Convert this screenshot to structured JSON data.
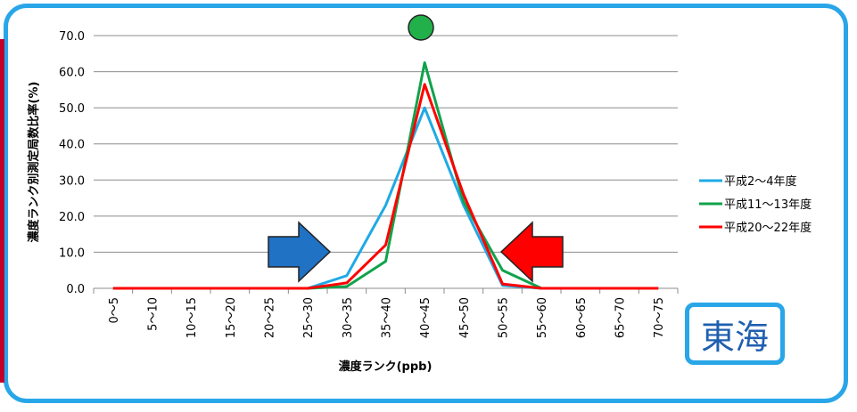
{
  "region_label": "東海",
  "colors": {
    "frame": "#29a6e8",
    "marker_circle": "#22b04b",
    "arrow_left": "#1f72c4",
    "arrow_right": "#ff0000"
  },
  "chart_data": {
    "type": "line",
    "title": "",
    "xlabel": "濃度ランク(ppb)",
    "ylabel": "濃度ランク別測定局数比率(%)",
    "ylim": [
      0,
      70
    ],
    "yticks": [
      "0.0",
      "10.0",
      "20.0",
      "30.0",
      "40.0",
      "50.0",
      "60.0",
      "70.0"
    ],
    "grid": true,
    "legend_position": "right",
    "categories": [
      "0〜5",
      "5〜10",
      "10〜15",
      "15〜20",
      "20〜25",
      "25〜30",
      "30〜35",
      "35〜40",
      "40〜45",
      "45〜50",
      "50〜55",
      "55〜60",
      "60〜65",
      "65〜70",
      "70〜75"
    ],
    "series": [
      {
        "name": "平成2〜4年度",
        "color": "#1fa9e5",
        "values": [
          0,
          0,
          0,
          0,
          0,
          0,
          3.5,
          23,
          50,
          23,
          0.8,
          0,
          0,
          0,
          0
        ]
      },
      {
        "name": "平成11〜13年度",
        "color": "#10a34b",
        "values": [
          0,
          0,
          0,
          0,
          0,
          0,
          0.5,
          7.5,
          62.5,
          24,
          5,
          0,
          0,
          0,
          0
        ]
      },
      {
        "name": "平成20〜22年度",
        "color": "#ff0000",
        "values": [
          0,
          0,
          0,
          0,
          0,
          0,
          1.5,
          12,
          56.5,
          26,
          1.2,
          0,
          0,
          0,
          0
        ]
      }
    ]
  }
}
